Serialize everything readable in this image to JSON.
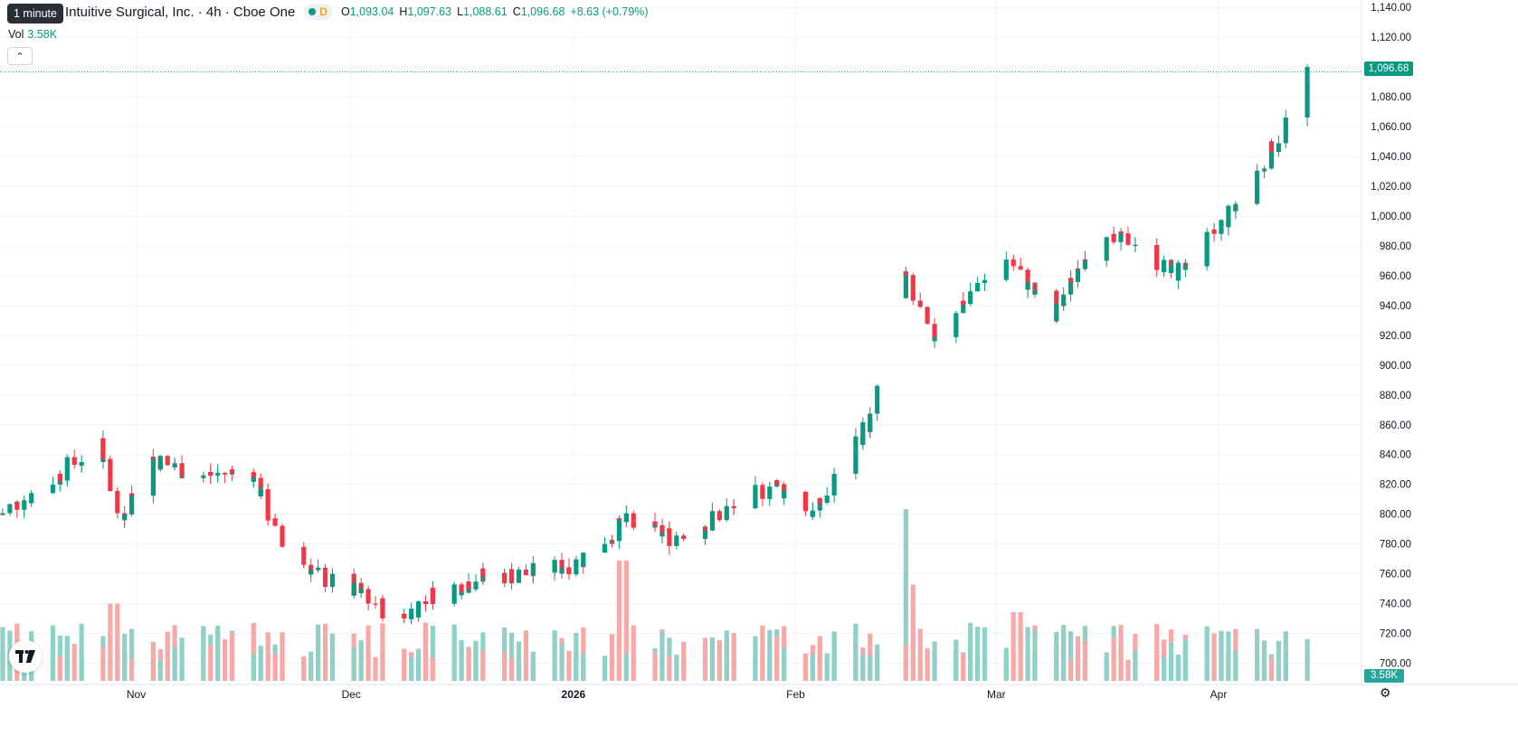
{
  "header": {
    "title": "Intuitive Surgical, Inc. · 4h · Cboe One",
    "tooltip": "1 minute",
    "market_dot_color": "#089981",
    "interval_badge": "D",
    "ohlc": {
      "o_label": "O",
      "o": "1,093.04",
      "h_label": "H",
      "h": "1,097.63",
      "l_label": "L",
      "l": "1,088.61",
      "c_label": "C",
      "c": "1,096.68",
      "change": "+8.63 (+0.79%)"
    }
  },
  "volume": {
    "label": "Vol",
    "value": "3.58K",
    "tag": "3.58K"
  },
  "collapse_icon": "chevron-up-icon",
  "last_price_tag": "1,096.68",
  "logo": "tradingview-logo",
  "settings_icon": "gear-icon",
  "colors": {
    "up": "#089981",
    "down": "#f23645",
    "vol_up": "#8fd1c8",
    "vol_down": "#f7a9a7",
    "grid": "#f0f3fa"
  },
  "chart_data": {
    "type": "candlestick",
    "title": "",
    "y_ticks": [
      "1,140.00",
      "1,120.00",
      "1,100.00",
      "1,080.00",
      "1,060.00",
      "1,040.00",
      "1,020.00",
      "1,000.00",
      "980.00",
      "960.00",
      "940.00",
      "920.00",
      "900.00",
      "880.00",
      "860.00",
      "840.00",
      "820.00",
      "800.00",
      "780.00",
      "760.00",
      "740.00",
      "720.00",
      "700.00"
    ],
    "ylim": [
      690,
      1145
    ],
    "x_labels": [
      {
        "label": "Nov",
        "date": "2025-11-01"
      },
      {
        "label": "Dec",
        "date": "2025-12-01"
      },
      {
        "label": "2026",
        "date": "2026-01-01"
      },
      {
        "label": "Feb",
        "date": "2026-02-01"
      },
      {
        "label": "Mar",
        "date": "2026-03-01"
      },
      {
        "label": "Apr",
        "date": "2026-04-01"
      }
    ],
    "approx_close_path": [
      {
        "date": "2025-10-13",
        "close": 800
      },
      {
        "date": "2025-10-20",
        "close": 820
      },
      {
        "date": "2025-10-27",
        "close": 848
      },
      {
        "date": "2025-10-30",
        "close": 798
      },
      {
        "date": "2025-11-03",
        "close": 838
      },
      {
        "date": "2025-11-10",
        "close": 825
      },
      {
        "date": "2025-11-17",
        "close": 830
      },
      {
        "date": "2025-11-21",
        "close": 785
      },
      {
        "date": "2025-11-26",
        "close": 760
      },
      {
        "date": "2025-12-03",
        "close": 745
      },
      {
        "date": "2025-12-08",
        "close": 728
      },
      {
        "date": "2025-12-12",
        "close": 745
      },
      {
        "date": "2025-12-19",
        "close": 758
      },
      {
        "date": "2025-12-26",
        "close": 760
      },
      {
        "date": "2026-01-02",
        "close": 768
      },
      {
        "date": "2026-01-08",
        "close": 795
      },
      {
        "date": "2026-01-15",
        "close": 785
      },
      {
        "date": "2026-01-22",
        "close": 800
      },
      {
        "date": "2026-01-29",
        "close": 820
      },
      {
        "date": "2026-02-04",
        "close": 800
      },
      {
        "date": "2026-02-09",
        "close": 845
      },
      {
        "date": "2026-02-12",
        "close": 865
      },
      {
        "date": "2026-02-16",
        "close": 960
      },
      {
        "date": "2026-02-20",
        "close": 918
      },
      {
        "date": "2026-02-26",
        "close": 950
      },
      {
        "date": "2026-03-03",
        "close": 972
      },
      {
        "date": "2026-03-09",
        "close": 930
      },
      {
        "date": "2026-03-13",
        "close": 975
      },
      {
        "date": "2026-03-20",
        "close": 985
      },
      {
        "date": "2026-03-26",
        "close": 960
      },
      {
        "date": "2026-04-01",
        "close": 990
      },
      {
        "date": "2026-04-07",
        "close": 1030
      },
      {
        "date": "2026-04-10",
        "close": 1058
      },
      {
        "date": "2026-04-14",
        "close": 1096.68
      }
    ],
    "volume_spikes": [
      {
        "date": "2025-10-29",
        "volume_rel": 0.45
      },
      {
        "date": "2026-01-08",
        "volume_rel": 0.7
      },
      {
        "date": "2026-02-16",
        "volume_rel": 1.0
      },
      {
        "date": "2026-02-17",
        "volume_rel": 0.56
      },
      {
        "date": "2026-03-04",
        "volume_rel": 0.4
      }
    ],
    "grid": true
  }
}
